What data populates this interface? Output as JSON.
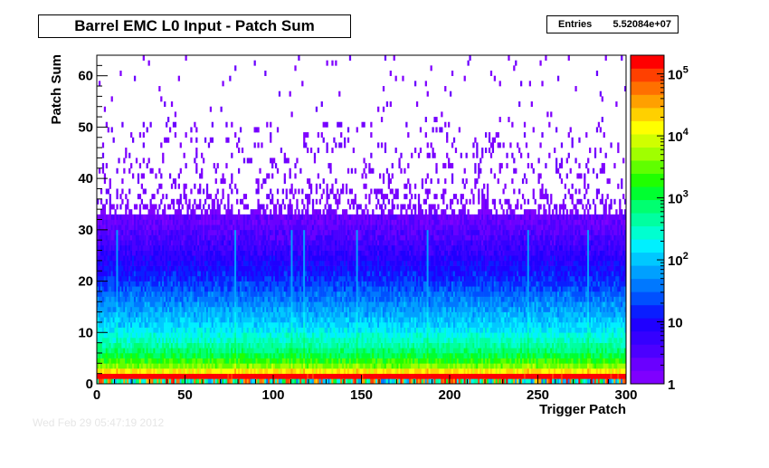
{
  "title": "Barrel EMC L0 Input - Patch Sum",
  "stats": {
    "label": "Entries",
    "value": "5.52084e+07"
  },
  "footer_text": "Wed Feb 29 05:47:19 2012",
  "chart_data": {
    "type": "heatmap",
    "title": "Barrel EMC L0 Input - Patch Sum",
    "xlabel": "Trigger Patch",
    "ylabel": "Patch Sum",
    "xlim": [
      0,
      300
    ],
    "ylim": [
      0,
      64
    ],
    "x_ticks": [
      "0",
      "50",
      "100",
      "150",
      "200",
      "250",
      "300"
    ],
    "y_ticks": [
      "0",
      "10",
      "20",
      "30",
      "40",
      "50",
      "60"
    ],
    "x_bins": 300,
    "y_bins": 64,
    "z_scale": "log",
    "z_range": [
      1,
      200000
    ],
    "z_tick_labels": [
      {
        "base": "1",
        "exp": ""
      },
      {
        "base": "10",
        "exp": ""
      },
      {
        "base": "10",
        "exp": "2"
      },
      {
        "base": "10",
        "exp": "3"
      },
      {
        "base": "10",
        "exp": "4"
      },
      {
        "base": "10",
        "exp": "5"
      }
    ],
    "entries": "5.52084e+07",
    "palette": [
      "#7f00ff",
      "#6a00ff",
      "#4c00ff",
      "#3500ff",
      "#1f00ff",
      "#0a1eff",
      "#0050ff",
      "#0078ff",
      "#00a0ff",
      "#00c8ff",
      "#00f0ff",
      "#00ffd0",
      "#00ffa0",
      "#00ff70",
      "#00ff30",
      "#20ff00",
      "#60ff00",
      "#a0ff00",
      "#d0ff00",
      "#ffff00",
      "#ffd000",
      "#ffa000",
      "#ff7000",
      "#ff4000",
      "#ff0000"
    ],
    "band_profile": [
      {
        "y": 0,
        "level": 5.0
      },
      {
        "y": 1,
        "level": 5.3
      },
      {
        "y": 2,
        "level": 4.2
      },
      {
        "y": 3,
        "level": 3.6
      },
      {
        "y": 4,
        "level": 3.3
      },
      {
        "y": 5,
        "level": 3.0
      },
      {
        "y": 6,
        "level": 2.8
      },
      {
        "y": 8,
        "level": 2.5
      },
      {
        "y": 10,
        "level": 2.2
      },
      {
        "y": 13,
        "level": 1.9
      },
      {
        "y": 17,
        "level": 1.5
      },
      {
        "y": 21,
        "level": 1.1
      },
      {
        "y": 26,
        "level": 0.7
      },
      {
        "y": 31,
        "level": 0.35
      },
      {
        "y": 38,
        "level": 0.1
      },
      {
        "y": 63,
        "level": 0.0
      }
    ],
    "bright_columns": [
      11,
      78,
      110,
      117,
      147,
      187,
      244,
      278
    ]
  }
}
